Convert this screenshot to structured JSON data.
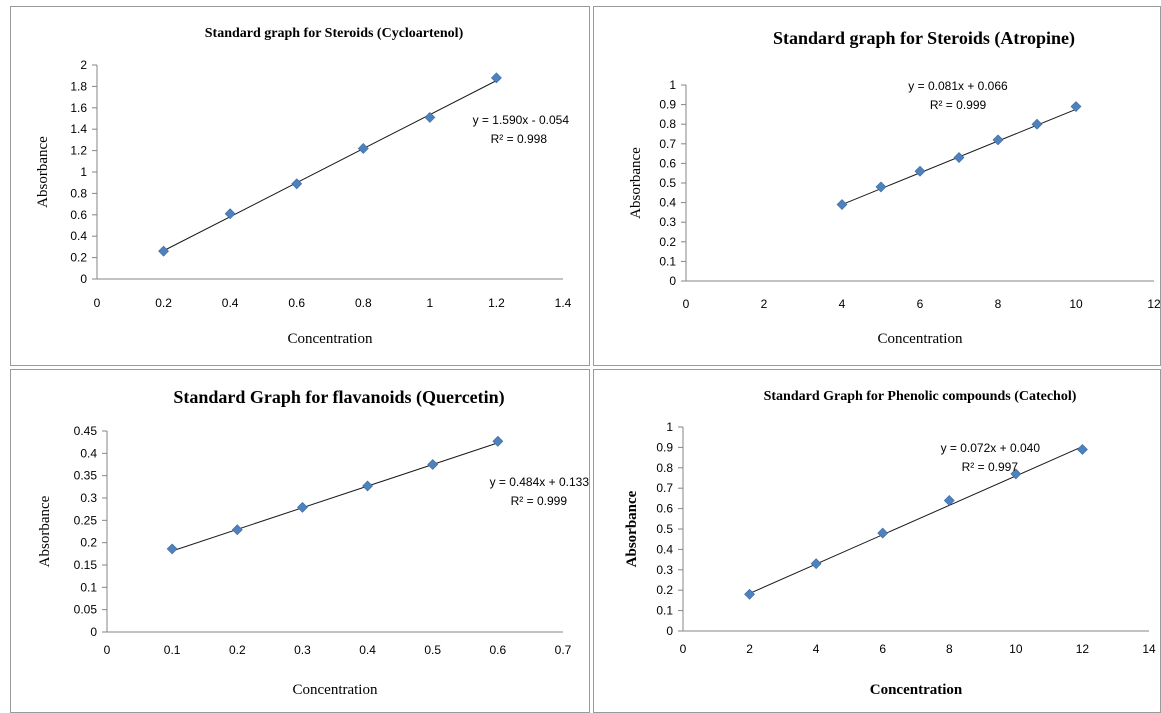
{
  "chart_data": [
    {
      "type": "scatter",
      "title": "Standard graph for Steroids (Cycloartenol)",
      "xlabel": "Concentration",
      "ylabel": "Absorbance",
      "xlim": [
        0,
        1.4
      ],
      "ylim": [
        0,
        2
      ],
      "xticks": [
        "0",
        "0.2",
        "0.4",
        "0.6",
        "0.8",
        "1",
        "1.2",
        "1.4"
      ],
      "yticks": [
        "0",
        "0.2",
        "0.4",
        "0.6",
        "0.8",
        "1",
        "1.2",
        "1.4",
        "1.6",
        "1.8",
        "2"
      ],
      "grid": false,
      "marker_color": "#4f81bd",
      "x": [
        0.2,
        0.4,
        0.6,
        0.8,
        1.0,
        1.2
      ],
      "y": [
        0.26,
        0.61,
        0.89,
        1.22,
        1.51,
        1.88
      ],
      "trendline": {
        "slope": 1.59,
        "intercept": -0.054
      },
      "equation": "y = 1.590x - 0.054",
      "r2_label": "R² = 0.998"
    },
    {
      "type": "scatter",
      "title": "Standard graph for Steroids (Atropine)",
      "xlabel": "Concentration",
      "ylabel": "Absorbance",
      "xlim": [
        0,
        12
      ],
      "ylim": [
        0,
        1
      ],
      "xticks": [
        "0",
        "2",
        "4",
        "6",
        "8",
        "10",
        "12"
      ],
      "yticks": [
        "0",
        "0.1",
        "0.2",
        "0.3",
        "0.4",
        "0.5",
        "0.6",
        "0.7",
        "0.8",
        "0.9",
        "1"
      ],
      "grid": false,
      "marker_color": "#4f81bd",
      "x": [
        4,
        5,
        6,
        7,
        8,
        9,
        10
      ],
      "y": [
        0.39,
        0.48,
        0.56,
        0.63,
        0.72,
        0.8,
        0.89
      ],
      "trendline": {
        "slope": 0.081,
        "intercept": 0.066
      },
      "equation": "y = 0.081x + 0.066",
      "r2_label": "R² = 0.999"
    },
    {
      "type": "scatter",
      "title": "Standard Graph for flavanoids (Quercetin)",
      "xlabel": "Concentration",
      "ylabel": "Absorbance",
      "xlim": [
        0,
        0.7
      ],
      "ylim": [
        0,
        0.45
      ],
      "xticks": [
        "0",
        "0.1",
        "0.2",
        "0.3",
        "0.4",
        "0.5",
        "0.6",
        "0.7"
      ],
      "yticks": [
        "0",
        "0.05",
        "0.1",
        "0.15",
        "0.2",
        "0.25",
        "0.3",
        "0.35",
        "0.4",
        "0.45"
      ],
      "grid": false,
      "marker_color": "#4f81bd",
      "x": [
        0.1,
        0.2,
        0.3,
        0.4,
        0.5,
        0.6
      ],
      "y": [
        0.186,
        0.229,
        0.279,
        0.327,
        0.375,
        0.427
      ],
      "trendline": {
        "slope": 0.484,
        "intercept": 0.133
      },
      "equation": "y = 0.484x + 0.133",
      "r2_label": "R² = 0.999"
    },
    {
      "type": "scatter",
      "title": "Standard Graph for Phenolic compounds (Catechol)",
      "xlabel": "Concentration",
      "ylabel": "Absorbance",
      "xlim": [
        0,
        14
      ],
      "ylim": [
        0,
        1
      ],
      "xticks": [
        "0",
        "2",
        "4",
        "6",
        "8",
        "10",
        "12",
        "14"
      ],
      "yticks": [
        "0",
        "0.1",
        "0.2",
        "0.3",
        "0.4",
        "0.5",
        "0.6",
        "0.7",
        "0.8",
        "0.9",
        "1"
      ],
      "grid": false,
      "marker_color": "#4f81bd",
      "x": [
        2,
        4,
        6,
        8,
        10,
        12
      ],
      "y": [
        0.18,
        0.33,
        0.48,
        0.64,
        0.77,
        0.89
      ],
      "trendline": {
        "slope": 0.072,
        "intercept": 0.04
      },
      "equation": "y = 0.072x + 0.040",
      "r2_label": "R² = 0.997"
    }
  ]
}
